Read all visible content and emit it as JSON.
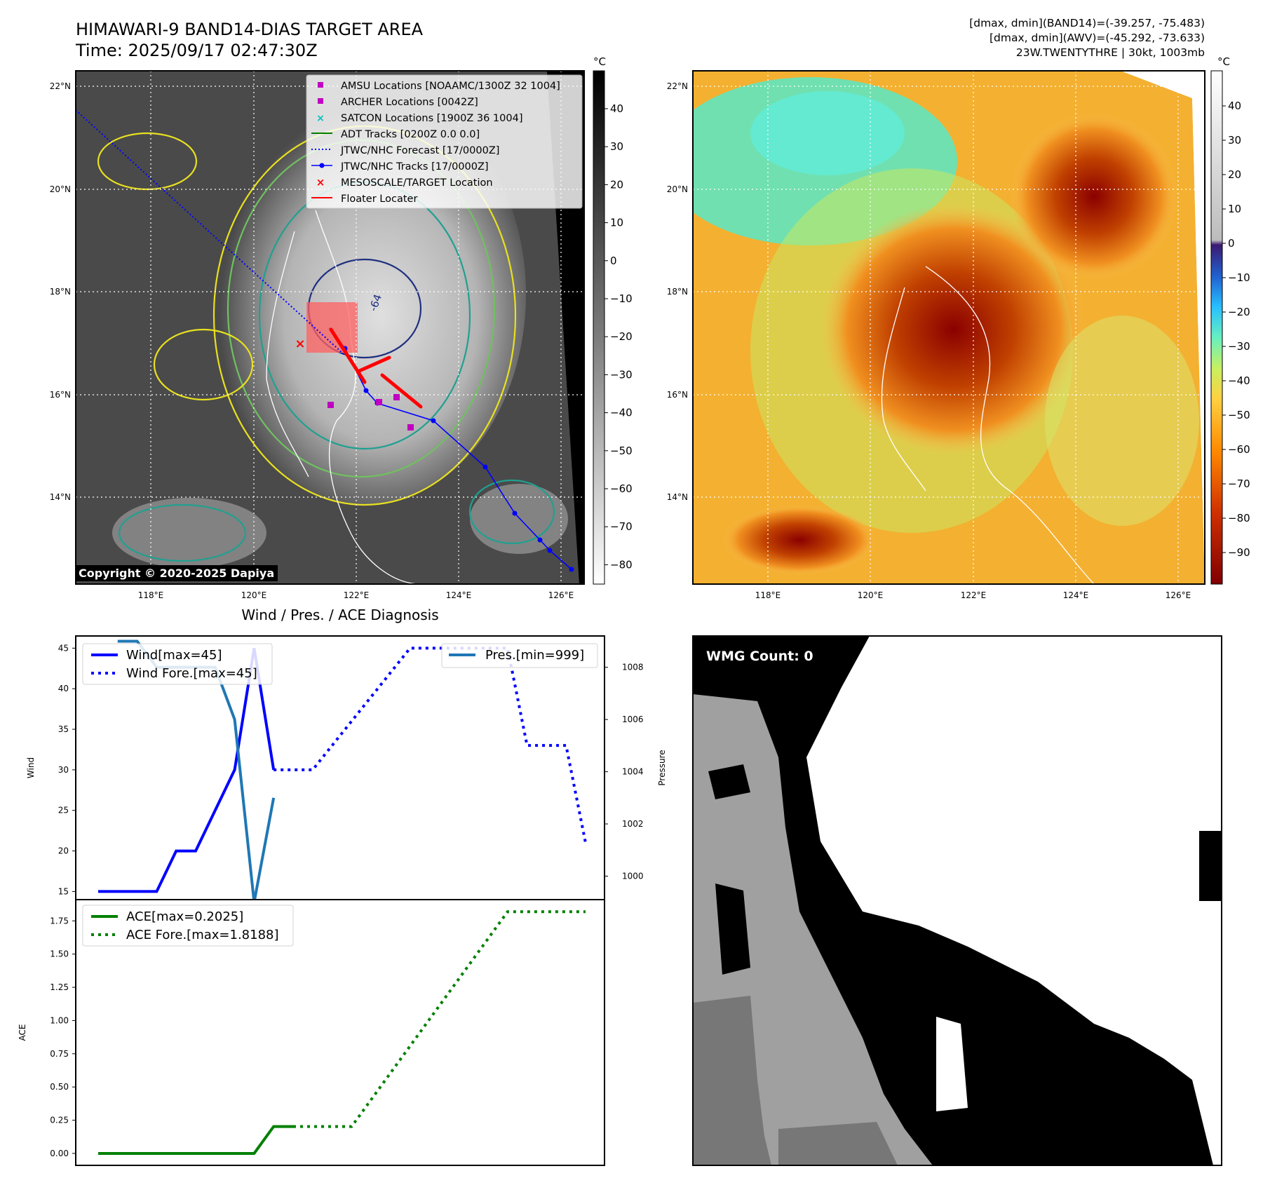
{
  "header": {
    "title": "HIMAWARI-9 BAND14-DIAS TARGET AREA",
    "time": "Time: 2025/09/17 02:47:30Z",
    "info1": "[dmax, dmin](BAND14)=(-39.257, -75.483)",
    "info2": "[dmax, dmin](AWV)=(-45.292, -73.633)",
    "info3": "23W.TWENTYTHRE | 30kt, 1003mb"
  },
  "map": {
    "lat_labels": [
      "22°N",
      "20°N",
      "18°N",
      "16°N",
      "14°N"
    ],
    "lon_labels": [
      "118°E",
      "120°E",
      "122°E",
      "124°E",
      "126°E"
    ],
    "copyright": "Copyright © 2020-2025 Dapiya",
    "contour_label": "-64",
    "legend": [
      "AMSU Locations [NOAAMC/1300Z 32 1004]",
      "ARCHER Locations [0042Z]",
      "SATCON Locations [1900Z 36 1004]",
      "ADT Tracks [0200Z 0.0 0.0]",
      "JTWC/NHC Forecast [17/0000Z]",
      "JTWC/NHC Tracks [17/0000Z]",
      "MESOSCALE/TARGET Location",
      "Floater Locater"
    ],
    "colors": {
      "amsu": "#c000c0",
      "archer": "#c000c0",
      "satcon": "#00bfbf",
      "adt": "#008000",
      "forecast": "#0000ff",
      "track": "#0000ff",
      "target": "#ff0000",
      "floater": "#ff0000"
    }
  },
  "colorbar_left": {
    "unit": "°C",
    "ticks": [
      "40",
      "30",
      "20",
      "10",
      "0",
      "−10",
      "−20",
      "−30",
      "−40",
      "−50",
      "−60",
      "−70",
      "−80"
    ]
  },
  "colorbar_right": {
    "unit": "°C",
    "ticks": [
      "40",
      "30",
      "20",
      "10",
      "0",
      "−10",
      "−20",
      "−30",
      "−40",
      "−50",
      "−60",
      "−70",
      "−80",
      "−90"
    ]
  },
  "wmg": {
    "label": "WMG Count: 0"
  },
  "chart_data": [
    {
      "type": "line",
      "title": "Wind / Pres. / ACE Diagnosis",
      "ylabel": "Wind",
      "y2label": "Pressure",
      "ylim": [
        14,
        46.5
      ],
      "y2lim": [
        999.1,
        1009.2
      ],
      "yticks": [
        15,
        20,
        25,
        30,
        35,
        40,
        45
      ],
      "y2ticks": [
        1000,
        1002,
        1004,
        1006,
        1008
      ],
      "legend_left": [
        "Wind[max=45]",
        "Wind Fore.[max=45]"
      ],
      "legend_right": [
        "Pres.[min=999]"
      ],
      "series": [
        {
          "name": "Wind[max=45]",
          "axis": "left",
          "style": "solid",
          "color": "#0000ff",
          "x": [
            0,
            3,
            4,
            5,
            7,
            8,
            9
          ],
          "values": [
            15,
            15,
            20,
            20,
            30,
            45,
            30
          ]
        },
        {
          "name": "Wind Fore.[max=45]",
          "axis": "left",
          "style": "dotted",
          "color": "#0000ff",
          "x": [
            9,
            11,
            16,
            20,
            21,
            22,
            24,
            25
          ],
          "values": [
            30,
            30,
            45,
            45,
            45,
            33,
            33,
            21
          ]
        },
        {
          "name": "Pres.[min=999]",
          "axis": "right",
          "style": "solid",
          "color": "#1f77b4",
          "x": [
            1,
            2,
            3,
            4,
            5,
            6,
            7,
            8,
            9
          ],
          "values": [
            1009,
            1009,
            1008,
            1008,
            1008,
            1008,
            1006,
            999,
            1003
          ]
        }
      ]
    },
    {
      "type": "line",
      "ylabel": "ACE",
      "ylim": [
        -0.09,
        1.91
      ],
      "yticks": [
        "0.00",
        "0.25",
        "0.50",
        "0.75",
        "1.00",
        "1.25",
        "1.50",
        "1.75"
      ],
      "legend": [
        "ACE[max=0.2025]",
        "ACE Fore.[max=1.8188]"
      ],
      "series": [
        {
          "name": "ACE[max=0.2025]",
          "style": "solid",
          "color": "#008000",
          "x": [
            0,
            8,
            9,
            10
          ],
          "values": [
            0,
            0,
            0.2025,
            0.2025
          ]
        },
        {
          "name": "ACE Fore.[max=1.8188]",
          "style": "dotted",
          "color": "#008000",
          "x": [
            10,
            13,
            21,
            25
          ],
          "values": [
            0.2025,
            0.2025,
            1.8188,
            1.8188
          ]
        }
      ]
    }
  ]
}
